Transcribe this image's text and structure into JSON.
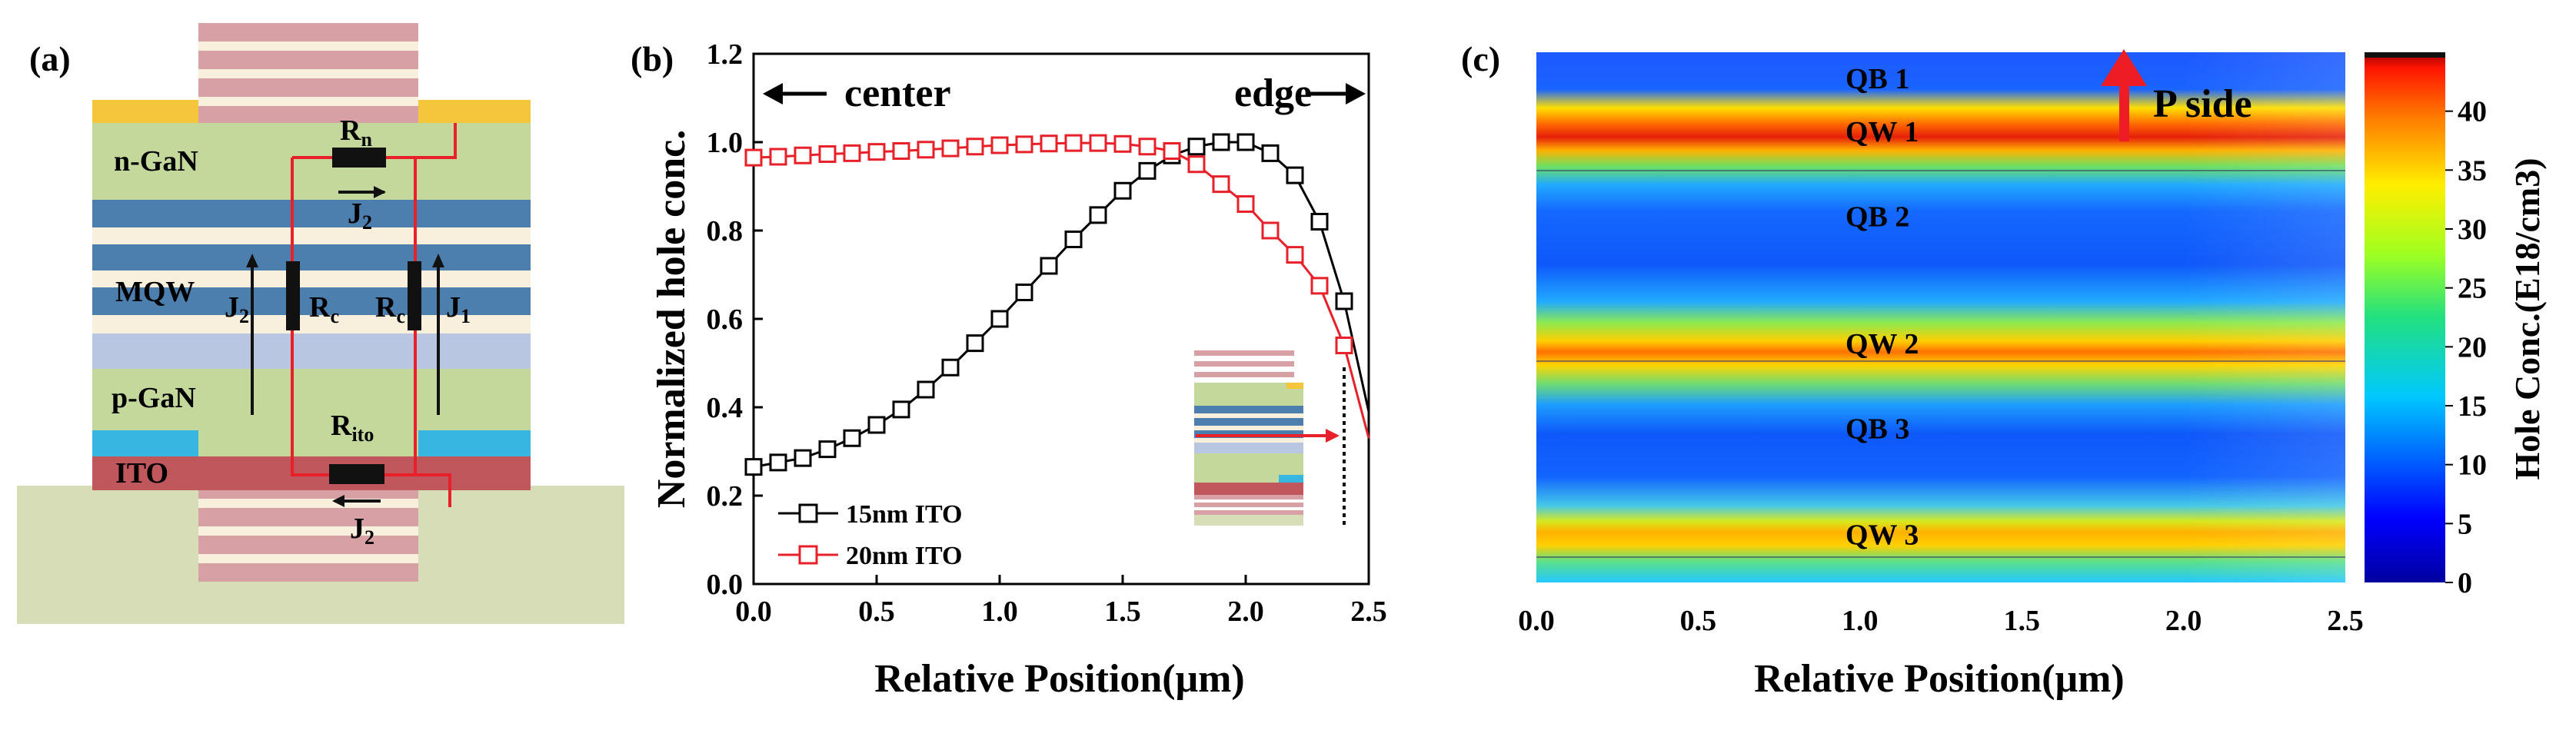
{
  "panel_a": {
    "label": "(a)",
    "layers": {
      "n_gan": "n-GaN",
      "mqw": "MQW",
      "p_gan": "p-GaN",
      "ito": "ITO"
    },
    "resistors": {
      "rn": {
        "main": "R",
        "sub": "n"
      },
      "rc_left": {
        "main": "R",
        "sub": "c"
      },
      "rc_right": {
        "main": "R",
        "sub": "c"
      },
      "rito": {
        "main": "R",
        "sub": "ito"
      }
    },
    "currents": {
      "j2_top": {
        "main": "J",
        "sub": "2"
      },
      "j2_left": {
        "main": "J",
        "sub": "2"
      },
      "j1_right": {
        "main": "J",
        "sub": "1"
      },
      "j2_bottom": {
        "main": "J",
        "sub": "2"
      }
    },
    "colors": {
      "pink_stripe": "#d7a0a5",
      "cream": "#f8f0dc",
      "gold": "#f5c63c",
      "green": "#c5d89c",
      "blue": "#4d7fae",
      "light_blue": "#b8c6e2",
      "cyan": "#36b6e0",
      "ito": "#c0575c",
      "base": "#d7ddb7",
      "wire": "#e8202a"
    }
  },
  "panel_b": {
    "label": "(b)",
    "annotations": {
      "center": "center",
      "edge": "edge"
    },
    "chart_data": {
      "type": "line",
      "xlabel": "Relative Position(μm)",
      "ylabel": "Normalized hole conc.",
      "xlim": [
        0.0,
        2.5
      ],
      "ylim": [
        0.0,
        1.2
      ],
      "xticks": [
        "0.0",
        "0.5",
        "1.0",
        "1.5",
        "2.0",
        "2.5"
      ],
      "yticks": [
        "0.0",
        "0.2",
        "0.4",
        "0.6",
        "0.8",
        "1.0",
        "1.2"
      ],
      "legend": {
        "position": "bottom-left"
      },
      "series": [
        {
          "name": "15nm ITO",
          "color": "#000000",
          "marker": "open-square",
          "x": [
            0.0,
            0.1,
            0.2,
            0.3,
            0.4,
            0.5,
            0.6,
            0.7,
            0.8,
            0.9,
            1.0,
            1.1,
            1.2,
            1.3,
            1.4,
            1.5,
            1.6,
            1.7,
            1.8,
            1.9,
            2.0,
            2.1,
            2.2,
            2.3,
            2.4,
            2.5
          ],
          "y": [
            0.265,
            0.275,
            0.285,
            0.305,
            0.33,
            0.36,
            0.395,
            0.44,
            0.49,
            0.545,
            0.6,
            0.66,
            0.72,
            0.78,
            0.835,
            0.89,
            0.935,
            0.97,
            0.99,
            1.0,
            1.0,
            0.975,
            0.925,
            0.82,
            0.64,
            0.39
          ]
        },
        {
          "name": "20nm ITO",
          "color": "#e8202a",
          "marker": "open-square",
          "x": [
            0.0,
            0.1,
            0.2,
            0.3,
            0.4,
            0.5,
            0.6,
            0.7,
            0.8,
            0.9,
            1.0,
            1.1,
            1.2,
            1.3,
            1.4,
            1.5,
            1.6,
            1.7,
            1.8,
            1.9,
            2.0,
            2.1,
            2.2,
            2.3,
            2.4,
            2.5
          ],
          "y": [
            0.965,
            0.967,
            0.97,
            0.973,
            0.975,
            0.978,
            0.98,
            0.983,
            0.986,
            0.99,
            0.993,
            0.995,
            0.997,
            0.998,
            0.998,
            0.996,
            0.99,
            0.98,
            0.95,
            0.905,
            0.86,
            0.8,
            0.745,
            0.675,
            0.54,
            0.33
          ]
        }
      ]
    }
  },
  "panel_c": {
    "label": "(c)",
    "arrow_label": "P side",
    "chart_data": {
      "type": "heatmap",
      "xlabel": "Relative Position(μm)",
      "xlim": [
        0.0,
        2.5
      ],
      "xticks": [
        "0.0",
        "0.5",
        "1.0",
        "1.5",
        "2.0",
        "2.5"
      ],
      "colorbar": {
        "label": "Hole Conc.(E18/cm3)",
        "range": [
          0,
          45
        ],
        "ticks": [
          "0",
          "5",
          "10",
          "15",
          "20",
          "25",
          "30",
          "35",
          "40"
        ]
      },
      "regions": [
        {
          "label": "QB 1",
          "level": 8
        },
        {
          "label": "QW 1",
          "level": 40
        },
        {
          "label": "QB 2",
          "level": 5
        },
        {
          "label": "QW 2",
          "level": 31
        },
        {
          "label": "QB 3",
          "level": 5
        },
        {
          "label": "QW 3",
          "level": 30
        }
      ]
    }
  }
}
